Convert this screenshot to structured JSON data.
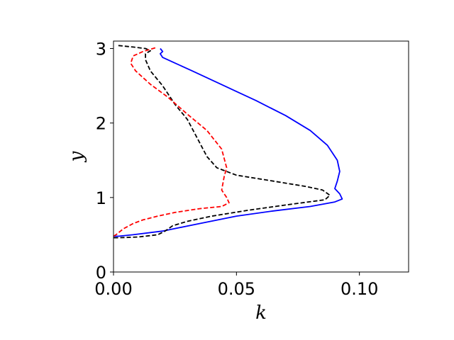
{
  "chart_data": {
    "type": "line",
    "title": "",
    "xlabel": "k",
    "ylabel": "y",
    "xlim": [
      0,
      0.12
    ],
    "ylim": [
      0,
      3.1
    ],
    "xticks": [
      0.0,
      0.05,
      0.1
    ],
    "xtick_labels": [
      "0.00",
      "0.05",
      "0.10"
    ],
    "yticks": [
      0,
      1,
      2,
      3
    ],
    "ytick_labels": [
      "0",
      "1",
      "2",
      "3"
    ],
    "grid": false,
    "series": [
      {
        "color": "#0000ff",
        "dash": "solid",
        "points": [
          [
            0.019,
            3.0
          ],
          [
            0.02,
            2.96
          ],
          [
            0.019,
            2.93
          ],
          [
            0.02,
            2.88
          ],
          [
            0.024,
            2.82
          ],
          [
            0.032,
            2.7
          ],
          [
            0.045,
            2.5
          ],
          [
            0.058,
            2.3
          ],
          [
            0.07,
            2.1
          ],
          [
            0.08,
            1.9
          ],
          [
            0.087,
            1.7
          ],
          [
            0.091,
            1.5
          ],
          [
            0.092,
            1.35
          ],
          [
            0.091,
            1.22
          ],
          [
            0.09,
            1.12
          ],
          [
            0.092,
            1.05
          ],
          [
            0.093,
            0.98
          ],
          [
            0.09,
            0.94
          ],
          [
            0.08,
            0.88
          ],
          [
            0.065,
            0.82
          ],
          [
            0.05,
            0.75
          ],
          [
            0.035,
            0.65
          ],
          [
            0.02,
            0.55
          ],
          [
            0.008,
            0.5
          ],
          [
            0.002,
            0.48
          ],
          [
            0.0,
            0.48
          ]
        ]
      },
      {
        "color": "#000000",
        "dash": "dashed",
        "points": [
          [
            0.002,
            3.04
          ],
          [
            0.008,
            3.02
          ],
          [
            0.013,
            3.0
          ],
          [
            0.015,
            2.97
          ],
          [
            0.013,
            2.93
          ],
          [
            0.013,
            2.85
          ],
          [
            0.015,
            2.7
          ],
          [
            0.02,
            2.5
          ],
          [
            0.025,
            2.25
          ],
          [
            0.03,
            2.05
          ],
          [
            0.034,
            1.8
          ],
          [
            0.038,
            1.55
          ],
          [
            0.042,
            1.4
          ],
          [
            0.05,
            1.3
          ],
          [
            0.065,
            1.22
          ],
          [
            0.078,
            1.15
          ],
          [
            0.085,
            1.1
          ],
          [
            0.088,
            1.03
          ],
          [
            0.086,
            0.97
          ],
          [
            0.07,
            0.9
          ],
          [
            0.055,
            0.83
          ],
          [
            0.04,
            0.75
          ],
          [
            0.03,
            0.68
          ],
          [
            0.024,
            0.62
          ],
          [
            0.021,
            0.55
          ],
          [
            0.018,
            0.5
          ],
          [
            0.01,
            0.47
          ],
          [
            0.002,
            0.46
          ],
          [
            0.0,
            0.46
          ]
        ]
      },
      {
        "color": "#ff0000",
        "dash": "dashed",
        "points": [
          [
            0.017,
            3.01
          ],
          [
            0.012,
            2.96
          ],
          [
            0.008,
            2.9
          ],
          [
            0.007,
            2.8
          ],
          [
            0.009,
            2.7
          ],
          [
            0.015,
            2.52
          ],
          [
            0.022,
            2.35
          ],
          [
            0.03,
            2.12
          ],
          [
            0.038,
            1.9
          ],
          [
            0.044,
            1.65
          ],
          [
            0.046,
            1.4
          ],
          [
            0.045,
            1.28
          ],
          [
            0.044,
            1.1
          ],
          [
            0.046,
            1.0
          ],
          [
            0.047,
            0.93
          ],
          [
            0.044,
            0.88
          ],
          [
            0.035,
            0.85
          ],
          [
            0.025,
            0.8
          ],
          [
            0.018,
            0.75
          ],
          [
            0.012,
            0.7
          ],
          [
            0.008,
            0.65
          ],
          [
            0.004,
            0.58
          ],
          [
            0.001,
            0.5
          ],
          [
            0.0,
            0.48
          ]
        ]
      }
    ]
  }
}
